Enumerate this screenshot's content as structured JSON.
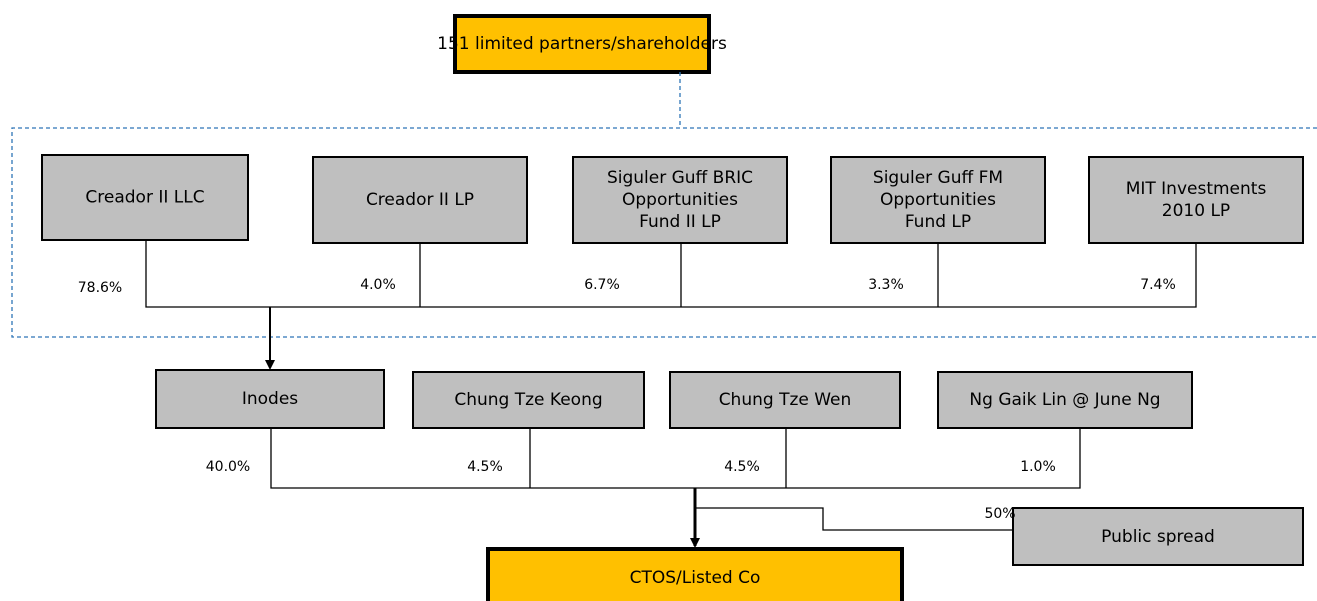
{
  "top": {
    "label": "151 limited partners/shareholders"
  },
  "funds": [
    {
      "label": "Creador II LLC",
      "share": "78.6%"
    },
    {
      "label": "Creador II LP",
      "share": "4.0%"
    },
    {
      "label": "Siguler Guff BRIC Opportunities Fund II LP",
      "lines": [
        "Siguler Guff BRIC",
        "Opportunities",
        "Fund II LP"
      ],
      "share": "6.7%"
    },
    {
      "label": "Siguler Guff FM Opportunities Fund LP",
      "lines": [
        "Siguler Guff FM",
        "Opportunities",
        "Fund LP"
      ],
      "share": "3.3%"
    },
    {
      "label": "MIT Investments 2010 LP",
      "lines": [
        "MIT Investments",
        "2010 LP"
      ],
      "share": "7.4%"
    }
  ],
  "holders": [
    {
      "label": "Inodes",
      "share": "40.0%"
    },
    {
      "label": "Chung Tze Keong",
      "share": "4.5%"
    },
    {
      "label": "Chung Tze Wen",
      "share": "4.5%"
    },
    {
      "label": "Ng Gaik Lin @ June Ng",
      "share": "1.0%"
    }
  ],
  "public": {
    "label": "Public spread",
    "share": "50%"
  },
  "target": {
    "label": "CTOS/Listed Co"
  }
}
